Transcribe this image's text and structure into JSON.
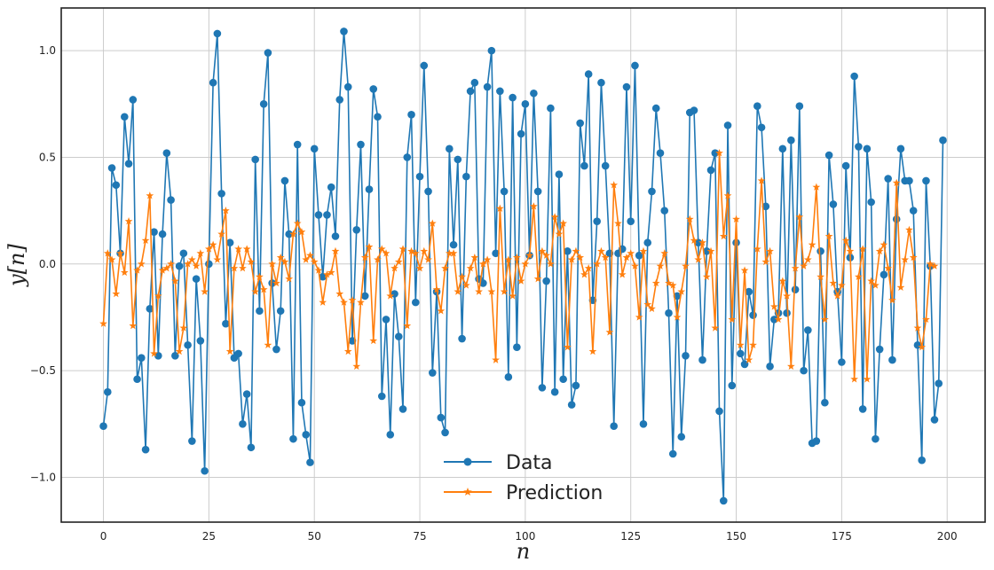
{
  "chart_data": {
    "type": "line",
    "title": "",
    "xlabel": "n",
    "ylabel": "y[n]",
    "xlim": [
      -10,
      209
    ],
    "ylim": [
      -1.21,
      1.2
    ],
    "xticks": [
      0,
      25,
      50,
      75,
      100,
      125,
      150,
      175,
      200
    ],
    "yticks": [
      -1.0,
      -0.5,
      0.0,
      0.5,
      1.0
    ],
    "xtick_labels": [
      "0",
      "25",
      "50",
      "75",
      "100",
      "125",
      "150",
      "175",
      "200"
    ],
    "ytick_labels": [
      "−1.0",
      "−0.5",
      "0.0",
      "0.5",
      "1.0"
    ],
    "grid": true,
    "legend_position": "bottom-center",
    "colors": {
      "data": "#1f77b4",
      "prediction": "#ff7f0e",
      "grid": "#cccccc",
      "axes": "#222222"
    },
    "series": [
      {
        "name": "Data",
        "marker": "circle",
        "values": [
          -0.76,
          -0.6,
          0.45,
          0.37,
          0.05,
          0.69,
          0.47,
          0.77,
          -0.54,
          -0.44,
          -0.87,
          -0.21,
          0.15,
          -0.43,
          0.14,
          0.52,
          0.3,
          -0.43,
          -0.01,
          0.05,
          -0.38,
          -0.83,
          -0.07,
          -0.36,
          -0.97,
          0.0,
          0.85,
          1.08,
          0.33,
          -0.28,
          0.1,
          -0.44,
          -0.42,
          -0.75,
          -0.61,
          -0.86,
          0.49,
          -0.22,
          0.75,
          0.99,
          -0.09,
          -0.4,
          -0.22,
          0.39,
          0.14,
          -0.82,
          0.56,
          -0.65,
          -0.8,
          -0.93,
          0.54,
          0.23,
          -0.06,
          0.23,
          0.36,
          0.13,
          0.77,
          1.09,
          0.83,
          -0.36,
          0.16,
          0.56,
          -0.15,
          0.35,
          0.82,
          0.69,
          -0.62,
          -0.26,
          -0.8,
          -0.14,
          -0.34,
          -0.68,
          0.5,
          0.7,
          -0.18,
          0.41,
          0.93,
          0.34,
          -0.51,
          -0.13,
          -0.72,
          -0.79,
          0.54,
          0.09,
          0.49,
          -0.35,
          0.41,
          0.81,
          0.85,
          -0.07,
          -0.09,
          0.83,
          1.0,
          0.05,
          0.81,
          0.34,
          -0.53,
          0.78,
          -0.39,
          0.61,
          0.75,
          0.04,
          0.8,
          0.34,
          -0.58,
          -0.08,
          0.73,
          -0.6,
          0.42,
          -0.54,
          0.06,
          -0.66,
          -0.57,
          0.66,
          0.46,
          0.89,
          -0.17,
          0.2,
          0.85,
          0.46,
          0.05,
          -0.76,
          0.05,
          0.07,
          0.83,
          0.2,
          0.93,
          0.04,
          -0.75,
          0.1,
          0.34,
          0.73,
          0.52,
          0.25,
          -0.23,
          -0.89,
          -0.15,
          -0.81,
          -0.43,
          0.71,
          0.72,
          0.1,
          -0.45,
          0.06,
          0.44,
          0.52,
          -0.69,
          -1.11,
          0.65,
          -0.57,
          0.1,
          -0.42,
          -0.47,
          -0.13,
          -0.24,
          0.74,
          0.64,
          0.27,
          -0.48,
          -0.26,
          -0.23,
          0.54,
          -0.23,
          0.58,
          -0.12,
          0.74,
          -0.5,
          -0.31,
          -0.84,
          -0.83,
          0.06,
          -0.65,
          0.51,
          0.28,
          -0.13,
          -0.46,
          0.46,
          0.03,
          0.88,
          0.55,
          -0.68,
          0.54,
          0.29,
          -0.82,
          -0.4,
          -0.05,
          0.4,
          -0.45,
          0.21,
          0.54,
          0.39,
          0.39,
          0.25,
          -0.38,
          -0.92,
          0.39,
          -0.01,
          -0.73,
          -0.56,
          0.58
        ]
      },
      {
        "name": "Prediction",
        "marker": "star",
        "values": [
          -0.28,
          0.05,
          0.02,
          -0.14,
          0.05,
          -0.04,
          0.2,
          -0.29,
          -0.03,
          0.0,
          0.11,
          0.32,
          -0.42,
          -0.15,
          -0.03,
          -0.02,
          0.0,
          -0.08,
          -0.41,
          -0.3,
          0.0,
          0.02,
          -0.01,
          0.05,
          -0.13,
          0.07,
          0.09,
          0.02,
          0.14,
          0.25,
          -0.41,
          -0.02,
          0.07,
          -0.02,
          0.07,
          0.01,
          -0.13,
          -0.06,
          -0.12,
          -0.38,
          0.0,
          -0.09,
          0.03,
          0.01,
          -0.07,
          0.14,
          0.19,
          0.15,
          0.02,
          0.04,
          0.01,
          -0.03,
          -0.18,
          -0.05,
          -0.04,
          0.06,
          -0.14,
          -0.18,
          -0.41,
          -0.17,
          -0.48,
          -0.18,
          0.03,
          0.08,
          -0.36,
          0.02,
          0.07,
          0.05,
          -0.15,
          -0.02,
          0.01,
          0.07,
          -0.29,
          0.06,
          0.05,
          -0.02,
          0.06,
          0.02,
          0.19,
          -0.12,
          -0.22,
          -0.02,
          0.05,
          0.05,
          -0.13,
          -0.06,
          -0.1,
          -0.02,
          0.03,
          -0.13,
          0.0,
          0.02,
          -0.13,
          -0.45,
          0.26,
          -0.13,
          0.02,
          -0.15,
          0.03,
          -0.08,
          0.0,
          0.04,
          0.27,
          -0.07,
          0.06,
          0.04,
          0.0,
          0.22,
          0.14,
          0.19,
          -0.39,
          0.02,
          0.06,
          0.03,
          -0.05,
          -0.02,
          -0.41,
          0.0,
          0.06,
          0.03,
          -0.32,
          0.37,
          0.19,
          -0.05,
          0.03,
          0.05,
          -0.01,
          -0.25,
          0.06,
          -0.19,
          -0.21,
          -0.09,
          -0.01,
          0.05,
          -0.09,
          -0.1,
          -0.25,
          -0.13,
          -0.01,
          0.21,
          0.11,
          0.02,
          0.1,
          -0.06,
          0.06,
          -0.3,
          0.52,
          0.13,
          0.32,
          -0.26,
          0.21,
          -0.38,
          -0.03,
          -0.45,
          -0.38,
          0.07,
          0.39,
          0.01,
          0.06,
          -0.2,
          -0.26,
          -0.08,
          -0.15,
          -0.48,
          -0.02,
          0.22,
          -0.01,
          0.02,
          0.09,
          0.36,
          -0.06,
          -0.26,
          0.13,
          -0.09,
          -0.15,
          -0.1,
          0.11,
          0.06,
          -0.54,
          -0.06,
          0.07,
          -0.54,
          -0.08,
          -0.1,
          0.06,
          0.09,
          -0.02,
          -0.17,
          0.38,
          -0.11,
          0.02,
          0.16,
          0.03,
          -0.3,
          -0.39,
          -0.26,
          0.0,
          -0.01
        ]
      }
    ]
  }
}
